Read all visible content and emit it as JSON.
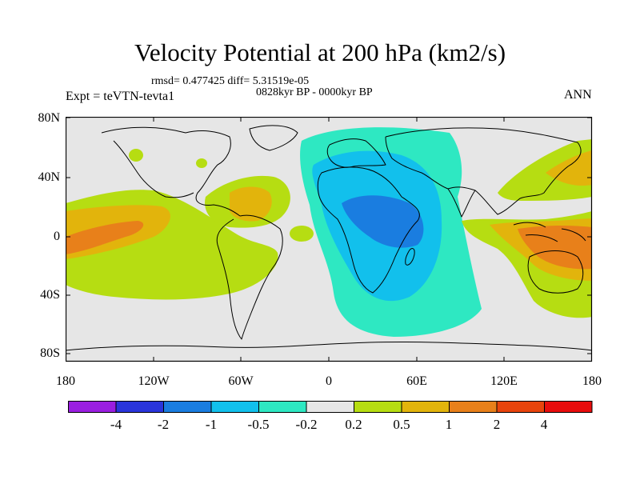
{
  "title": "Velocity Potential at 200 hPa (km2/s)",
  "stats": "rmsd= 0.477425  diff= 5.31519e-05",
  "period": "0828kyr BP - 0000kyr BP",
  "experiment": "Expt = teVTN-tevta1",
  "season": "ANN",
  "y_axis_labels": [
    "80N",
    "40N",
    "0",
    "40S",
    "80S"
  ],
  "x_axis_labels": [
    "180",
    "120W",
    "60W",
    "0",
    "60E",
    "120E",
    "180"
  ],
  "colorbar": {
    "colors": [
      "#9a1ee0",
      "#2a35db",
      "#1a7de0",
      "#12c0ec",
      "#2ee8c2",
      "#e6e6e6",
      "#b6dd12",
      "#e2b40c",
      "#e8801a",
      "#e8440c",
      "#e80c0c"
    ],
    "labels": [
      "-4",
      "-2",
      "-1",
      "-0.5",
      "-0.2",
      "0.2",
      "0.5",
      "1",
      "2",
      "4"
    ]
  },
  "map_fill": {
    "background": "#e6e6e6",
    "coastline_color": "#000000"
  }
}
